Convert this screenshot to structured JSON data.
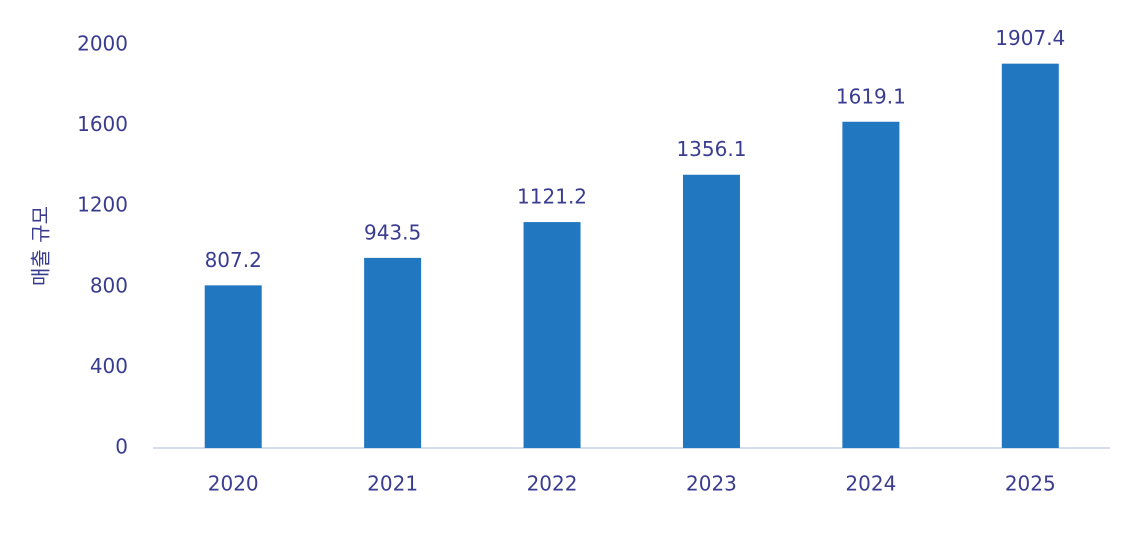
{
  "chart_data": {
    "type": "bar",
    "y_label": "매출 규모",
    "categories": [
      "2020",
      "2021",
      "2022",
      "2023",
      "2024",
      "2025"
    ],
    "values": [
      807.2,
      943.5,
      1121.2,
      1356.1,
      1619.1,
      1907.4
    ],
    "color": "#2177c0",
    "ylim": [
      0,
      2000
    ],
    "yticks": [
      0,
      400,
      800,
      1200,
      1600,
      2000
    ],
    "grid": false
  }
}
